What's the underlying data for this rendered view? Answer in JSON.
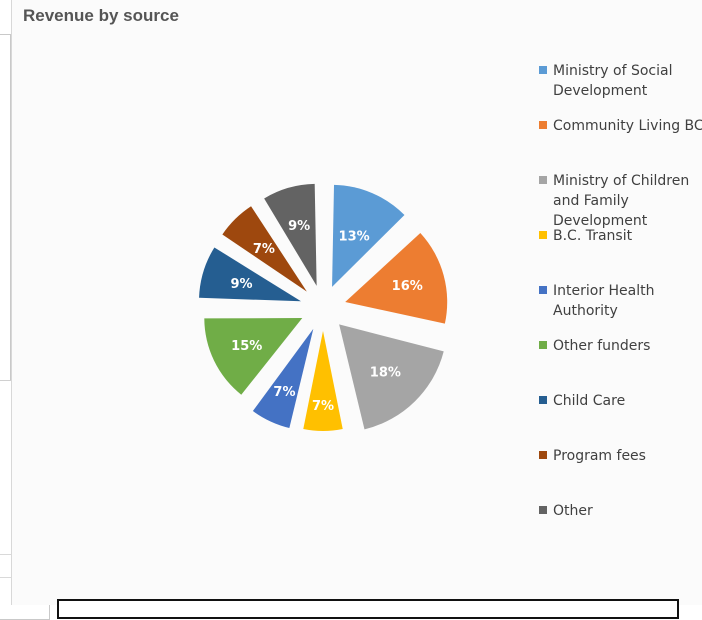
{
  "chart_data": {
    "type": "pie",
    "title": "Revenue by source",
    "exploded": true,
    "legend_position": "right",
    "slices": [
      {
        "label": "Ministry of Social Development",
        "value": 13,
        "display": "13%",
        "color": "#5b9bd5"
      },
      {
        "label": "Community Living BC",
        "value": 16,
        "display": "16%",
        "color": "#ed7d31"
      },
      {
        "label": "Ministry of Children and Family Development",
        "value": 18,
        "display": "18%",
        "color": "#a5a5a5"
      },
      {
        "label": "B.C. Transit",
        "value": 7,
        "display": "7%",
        "color": "#ffc000"
      },
      {
        "label": "Interior Health Authority",
        "value": 7,
        "display": "7%",
        "color": "#4472c4"
      },
      {
        "label": "Other funders",
        "value": 15,
        "display": "15%",
        "color": "#70ad47"
      },
      {
        "label": "Child Care",
        "value": 9,
        "display": "9%",
        "color": "#255e91"
      },
      {
        "label": "Program fees",
        "value": 7,
        "display": "7%",
        "color": "#9e480e"
      },
      {
        "label": "Other",
        "value": 9,
        "display": "9%",
        "color": "#636363"
      }
    ]
  }
}
